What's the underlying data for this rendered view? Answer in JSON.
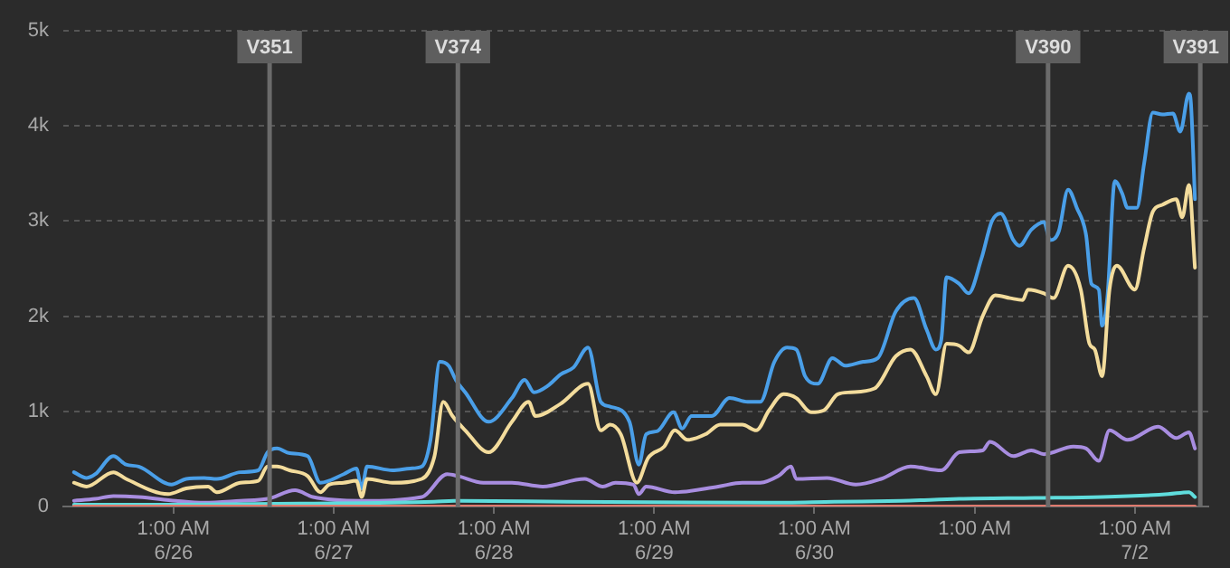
{
  "chart_data": {
    "type": "line",
    "grid": "y",
    "legend": false,
    "marker": "none",
    "line_style": "solid",
    "xlim": [
      "--06-25T08:30",
      "--07-02T12:00"
    ],
    "xticks": [
      {
        "value": "--06-26T01:00",
        "label": "1:00 AM\n6/26"
      },
      {
        "value": "--06-27T01:00",
        "label": "1:00 AM\n6/27"
      },
      {
        "value": "--06-28T01:00",
        "label": "1:00 AM\n6/28"
      },
      {
        "value": "--06-29T01:00",
        "label": "1:00 AM\n6/29"
      },
      {
        "value": "--06-30T01:00",
        "label": "1:00 AM\n6/30"
      },
      {
        "value": "--07-01T01:00",
        "label": "1:00 AM"
      },
      {
        "value": "--07-02T01:00",
        "label": "1:00 AM\n7/2"
      }
    ],
    "ylim": [
      0,
      5000
    ],
    "yticks": [
      {
        "value": 0,
        "label": "0"
      },
      {
        "value": 1000,
        "label": "1k"
      },
      {
        "value": 2000,
        "label": "2k"
      },
      {
        "value": 3000,
        "label": "3k"
      },
      {
        "value": 4000,
        "label": "4k"
      },
      {
        "value": 5000,
        "label": "5k"
      }
    ],
    "ref_lines": [
      {
        "axis": "x",
        "value": "--06-26T15:24",
        "label": "V351"
      },
      {
        "axis": "x",
        "value": "--06-27T19:36",
        "label": "V374"
      },
      {
        "axis": "x",
        "value": "--07-01T12:00",
        "label": "V390"
      },
      {
        "axis": "x",
        "value": "--07-02T10:48",
        "label": "V391"
      }
    ],
    "series": [
      {
        "color": "#e07a6e",
        "x": [
          "--06-25T10:06",
          "--06-28T22:00",
          "--07-02T10:00"
        ],
        "values": [
          0,
          0,
          0
        ]
      },
      {
        "color": "#5fdcdc",
        "x": [
          "--06-25T10:06",
          "--06-26T00:00",
          "--06-26T20:00",
          "--06-27T16:00",
          "--06-27T19:00",
          "--06-28T12:00",
          "--06-29T18:00",
          "--06-30T04:00",
          "--06-30T14:00",
          "--06-30T22:42",
          "--07-01T10:00",
          "--07-01T20:00",
          "--07-02T06:00",
          "--07-02T09:06",
          "--07-02T10:00"
        ],
        "values": [
          20,
          20,
          30,
          50,
          60,
          50,
          40,
          50,
          60,
          80,
          90,
          100,
          130,
          150,
          100
        ]
      },
      {
        "color": "#a88de0",
        "x": [
          "--06-25T10:06",
          "--06-25T13:18",
          "--06-25T16:00",
          "--06-25T19:48",
          "--06-26T01:18",
          "--06-26T05:36",
          "--06-26T11:00",
          "--06-26T15:06",
          "--06-26T19:12",
          "--06-26T21:54",
          "--06-27T05:12",
          "--06-27T14:12",
          "--06-27T18:00",
          "--06-27T19:36",
          "--06-27T23:24",
          "--06-28T03:42",
          "--06-28T08:18",
          "--06-28T14:36",
          "--06-28T17:18",
          "--06-28T19:12",
          "--06-28T21:54",
          "--06-28T22:42",
          "--06-28T23:48",
          "--06-29T04:06",
          "--06-29T10:36",
          "--06-29T14:12",
          "--06-29T16:54",
          "--06-29T19:36",
          "--06-29T21:30",
          "--06-29T22:18",
          "--06-30T02:54",
          "--06-30T07:12",
          "--06-30T11:00",
          "--06-30T15:24",
          "--06-30T20:00",
          "--06-30T22:42",
          "--07-01T02:12",
          "--07-01T03:18",
          "--07-01T06:48",
          "--07-01T09:30",
          "--07-01T11:24",
          "--07-01T15:48",
          "--07-01T17:42",
          "--07-01T19:36",
          "--07-01T21:12",
          "--07-01T23:54",
          "--07-02T04:30",
          "--07-02T07:12",
          "--07-02T09:06",
          "--07-02T10:00"
        ],
        "values": [
          60,
          80,
          110,
          100,
          60,
          40,
          60,
          80,
          170,
          100,
          60,
          100,
          340,
          320,
          250,
          250,
          210,
          290,
          210,
          250,
          230,
          130,
          210,
          150,
          210,
          250,
          250,
          320,
          420,
          290,
          300,
          230,
          290,
          420,
          380,
          570,
          590,
          680,
          530,
          590,
          550,
          630,
          610,
          480,
          800,
          700,
          840,
          720,
          780,
          610
        ]
      },
      {
        "color": "#f3dc9c",
        "x": [
          "--06-25T10:06",
          "--06-25T12:00",
          "--06-25T16:00",
          "--06-25T17:54",
          "--06-26T00:12",
          "--06-26T02:54",
          "--06-26T06:12",
          "--06-26T07:30",
          "--06-26T11:00",
          "--06-26T13:42",
          "--06-26T15:06",
          "--06-26T16:30",
          "--06-26T18:24",
          "--06-26T21:06",
          "--06-26T23:00",
          "--06-27T00:18",
          "--06-27T02:30",
          "--06-27T04:24",
          "--06-27T05:12",
          "--06-27T06:00",
          "--06-27T09:48",
          "--06-27T14:12",
          "--06-27T16:06",
          "--06-27T17:24",
          "--06-27T18:48",
          "--06-27T20:42",
          "--06-28T00:12",
          "--06-28T03:42",
          "--06-28T06:12",
          "--06-28T07:12",
          "--06-28T11:00",
          "--06-28T15:06",
          "--06-28T17:00",
          "--06-28T18:24",
          "--06-28T20:00",
          "--06-28T22:24",
          "--06-29T00:06",
          "--06-29T02:30",
          "--06-29T04:06",
          "--06-29T06:00",
          "--06-29T08:42",
          "--06-29T10:54",
          "--06-29T14:12",
          "--06-29T16:18",
          "--06-29T18:12",
          "--06-29T20:24",
          "--06-29T22:18",
          "--06-30T00:30",
          "--06-30T02:24",
          "--06-30T04:30",
          "--06-30T06:24",
          "--06-30T10:00",
          "--06-30T13:12",
          "--06-30T15:24",
          "--06-30T17:48",
          "--06-30T19:12",
          "--06-30T20:48",
          "--06-30T22:42",
          "--07-01T00:06",
          "--07-01T02:12",
          "--07-01T04:06",
          "--07-01T06:18",
          "--07-01T08:12",
          "--07-01T09:00",
          "--07-01T11:24",
          "--07-01T12:48",
          "--07-01T15:00",
          "--07-01T16:54",
          "--07-01T18:12",
          "--07-01T19:00",
          "--07-01T20:06",
          "--07-01T21:12",
          "--07-01T22:18",
          "--07-02T01:00",
          "--07-02T02:24",
          "--07-02T03:42",
          "--07-02T05:06",
          "--07-02T07:12",
          "--07-02T08:06",
          "--07-02T09:06",
          "--07-02T10:00"
        ],
        "values": [
          250,
          210,
          360,
          290,
          130,
          190,
          210,
          150,
          250,
          270,
          420,
          420,
          380,
          320,
          150,
          230,
          250,
          270,
          100,
          290,
          250,
          290,
          530,
          1100,
          950,
          800,
          570,
          890,
          1100,
          950,
          1080,
          1290,
          800,
          860,
          760,
          250,
          510,
          630,
          800,
          700,
          760,
          860,
          860,
          800,
          1010,
          1180,
          1140,
          990,
          1010,
          1180,
          1200,
          1240,
          1580,
          1650,
          1370,
          1180,
          1710,
          1690,
          1620,
          2000,
          2220,
          2190,
          2170,
          2280,
          2240,
          2190,
          2530,
          2280,
          1710,
          1650,
          1370,
          2280,
          2530,
          2280,
          2720,
          3100,
          3170,
          3230,
          3040,
          3380,
          2510
        ]
      },
      {
        "color": "#4a9fe8",
        "x": [
          "--06-25T10:06",
          "--06-25T12:00",
          "--06-25T13:18",
          "--06-25T16:00",
          "--06-25T17:54",
          "--06-25T19:48",
          "--06-26T00:42",
          "--06-26T02:54",
          "--06-26T05:36",
          "--06-26T07:30",
          "--06-26T11:00",
          "--06-26T13:42",
          "--06-26T15:06",
          "--06-26T16:30",
          "--06-26T18:24",
          "--06-26T21:06",
          "--06-26T23:00",
          "--06-27T02:30",
          "--06-27T04:24",
          "--06-27T05:12",
          "--06-27T06:00",
          "--06-27T09:48",
          "--06-27T12:30",
          "--06-27T14:12",
          "--06-27T15:30",
          "--06-27T16:54",
          "--06-27T18:12",
          "--06-27T19:18",
          "--06-27T20:42",
          "--06-28T00:12",
          "--06-28T03:42",
          "--06-28T05:36",
          "--06-28T07:00",
          "--06-28T09:06",
          "--06-28T11:00",
          "--06-28T12:54",
          "--06-28T15:06",
          "--06-28T17:00",
          "--06-28T18:24",
          "--06-28T21:18",
          "--06-28T22:42",
          "--06-28T23:48",
          "--06-29T01:24",
          "--06-29T03:54",
          "--06-29T05:12",
          "--06-29T06:36",
          "--06-29T09:36",
          "--06-29T12:18",
          "--06-29T15:00",
          "--06-29T16:54",
          "--06-29T19:00",
          "--06-29T20:54",
          "--06-29T22:18",
          "--06-29T23:36",
          "--06-30T01:30",
          "--06-30T03:42",
          "--06-30T05:36",
          "--06-30T08:18",
          "--06-30T10:30",
          "--06-30T13:12",
          "--06-30T15:54",
          "--06-30T17:48",
          "--06-30T19:12",
          "--06-30T20:00",
          "--06-30T20:48",
          "--06-30T22:42",
          "--07-01T00:06",
          "--07-01T02:00",
          "--07-01T03:36",
          "--07-01T04:54",
          "--07-01T06:48",
          "--07-01T07:42",
          "--07-01T09:30",
          "--07-01T11:24",
          "--07-01T12:18",
          "--07-01T13:36",
          "--07-01T15:00",
          "--07-01T16:18",
          "--07-01T17:42",
          "--07-01T18:30",
          "--07-01T19:36",
          "--07-01T20:06",
          "--07-01T20:54",
          "--07-01T22:00",
          "--07-01T23:06",
          "--07-01T23:54",
          "--07-02T01:18",
          "--07-02T02:24",
          "--07-02T03:42",
          "--07-02T05:06",
          "--07-02T06:42",
          "--07-02T07:48",
          "--07-02T09:06",
          "--07-02T09:24",
          "--07-02T10:00"
        ],
        "values": [
          360,
          300,
          340,
          530,
          440,
          420,
          230,
          290,
          300,
          290,
          360,
          380,
          570,
          610,
          560,
          530,
          250,
          340,
          400,
          190,
          420,
          380,
          400,
          420,
          700,
          1520,
          1480,
          1330,
          1200,
          890,
          1140,
          1330,
          1200,
          1270,
          1390,
          1460,
          1670,
          1100,
          1050,
          890,
          440,
          760,
          790,
          990,
          820,
          950,
          950,
          1140,
          1100,
          1100,
          1520,
          1670,
          1650,
          1370,
          1290,
          1560,
          1480,
          1520,
          1560,
          2050,
          2190,
          1860,
          1650,
          1750,
          2410,
          2340,
          2240,
          2600,
          3000,
          3080,
          2800,
          2740,
          2910,
          2990,
          2800,
          2890,
          3330,
          3140,
          2850,
          2340,
          2280,
          1900,
          2210,
          3420,
          3290,
          3140,
          3140,
          3610,
          4140,
          4120,
          4130,
          3940,
          4340,
          4240,
          3230
        ]
      }
    ]
  }
}
